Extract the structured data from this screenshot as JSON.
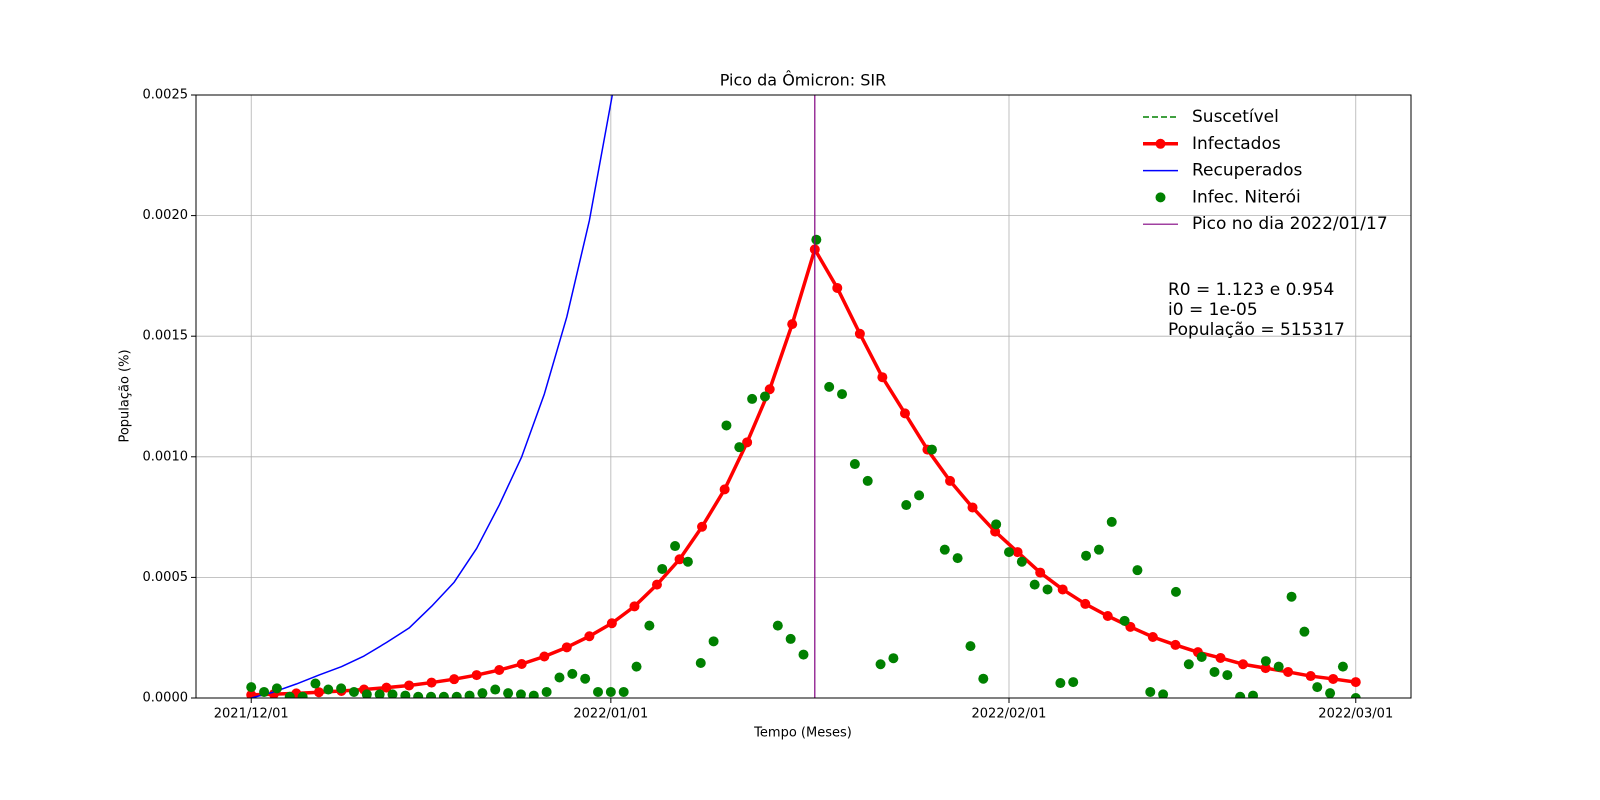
{
  "chart_data": {
    "type": "line",
    "title": "Pico da Ômicron: SIR",
    "x_label": "Tempo (Meses)",
    "y_label": "População (%)",
    "xlim": [
      -4.3,
      90.3
    ],
    "ylim": [
      0,
      0.0025
    ],
    "xticks": [
      {
        "value": 0,
        "label": "2021/12/01"
      },
      {
        "value": 28,
        "label": "2022/01/01"
      },
      {
        "value": 59,
        "label": "2022/02/01"
      },
      {
        "value": 86,
        "label": "2022/03/01"
      }
    ],
    "yticks": [
      {
        "value": 0,
        "label": "0.0000"
      },
      {
        "value": 0.0005,
        "label": "0.0005"
      },
      {
        "value": 0.001,
        "label": "0.0010"
      },
      {
        "value": 0.0015,
        "label": "0.0015"
      },
      {
        "value": 0.002,
        "label": "0.0020"
      },
      {
        "value": 0.0025,
        "label": "0.0025"
      }
    ],
    "grid": true,
    "legend": "upper right",
    "series": [
      {
        "name": "Suscetível",
        "color": "green",
        "style": "dashed",
        "x": [],
        "values": []
      },
      {
        "name": "Infectados",
        "color": "red",
        "style": "line-markers",
        "x": [
          0,
          1.76,
          3.51,
          5.27,
          7.02,
          8.78,
          10.53,
          12.29,
          14.04,
          15.8,
          17.55,
          19.31,
          21.06,
          22.82,
          24.57,
          26.33,
          28.08,
          29.84,
          31.59,
          33.35,
          35.1,
          36.86,
          38.61,
          40.37,
          42.12,
          43.88,
          45.63,
          47.39,
          49.14,
          50.9,
          52.65,
          54.41,
          56.16,
          57.92,
          59.67,
          61.43,
          63.18,
          64.94,
          66.69,
          68.45,
          70.2,
          71.96,
          73.71,
          75.47,
          77.22,
          78.98,
          80.73,
          82.49,
          84.24,
          86
        ],
        "values": [
          1.3e-05,
          1.6e-05,
          1.9e-05,
          2.4e-05,
          2.9e-05,
          3.5e-05,
          4.3e-05,
          5.2e-05,
          6.4e-05,
          7.8e-05,
          9.5e-05,
          0.000116,
          0.000141,
          0.000172,
          0.00021,
          0.000256,
          0.00031,
          0.00038,
          0.00047,
          0.000575,
          0.00071,
          0.000865,
          0.00106,
          0.00128,
          0.00155,
          0.00186,
          0.0017,
          0.00151,
          0.00133,
          0.00118,
          0.00103,
          0.0009,
          0.00079,
          0.00069,
          0.000605,
          0.00052,
          0.00045,
          0.00039,
          0.00034,
          0.000295,
          0.000253,
          0.00022,
          0.00019,
          0.000166,
          0.00014,
          0.000124,
          0.000108,
          9.1e-05,
          7.9e-05,
          6.6e-05
        ]
      },
      {
        "name": "Recuperados",
        "color": "blue",
        "style": "line",
        "x": [
          0,
          1.76,
          3.51,
          5.27,
          7.02,
          8.78,
          10.53,
          12.29,
          14.04,
          15.8,
          17.55,
          19.31,
          21.06,
          22.82,
          24.57,
          26.33,
          28.08,
          29.84
        ],
        "values": [
          0,
          2.5e-05,
          5.8e-05,
          9.5e-05,
          0.00013,
          0.000174,
          0.00023,
          0.00029,
          0.00038,
          0.00048,
          0.00062,
          0.0008,
          0.001,
          0.00126,
          0.00158,
          0.00198,
          0.00249,
          0.0031
        ]
      },
      {
        "name": "Infec. Niterói",
        "color": "green",
        "style": "markers",
        "x": [
          0,
          1,
          2,
          3,
          4,
          5,
          6,
          7,
          8,
          9,
          10,
          11,
          12,
          13,
          14,
          15,
          16,
          17,
          18,
          19,
          20,
          21,
          22,
          23,
          24,
          25,
          26,
          27,
          28,
          29,
          30,
          31,
          32,
          33,
          34,
          35,
          36,
          37,
          38,
          39,
          40,
          41,
          42,
          43,
          44,
          45,
          46,
          47,
          48,
          49,
          50,
          51,
          52,
          53,
          54,
          55,
          56,
          57,
          58,
          59,
          60,
          61,
          62,
          63,
          64,
          65,
          66,
          67,
          68,
          69,
          70,
          71,
          72,
          73,
          74,
          75,
          76,
          77,
          78,
          79,
          80,
          81,
          82,
          83,
          84,
          85,
          86
        ],
        "values": [
          4.5e-05,
          2.5e-05,
          4e-05,
          5e-06,
          5e-06,
          6e-05,
          3.5e-05,
          4e-05,
          2.5e-05,
          1.5e-05,
          1.5e-05,
          1.5e-05,
          1e-05,
          5e-06,
          5e-06,
          5e-06,
          5e-06,
          1e-05,
          2e-05,
          3.5e-05,
          2e-05,
          1.5e-05,
          1e-05,
          2.5e-05,
          8.5e-05,
          0.0001,
          8e-05,
          2.5e-05,
          2.5e-05,
          2.5e-05,
          0.00013,
          0.0003,
          0.000535,
          0.00063,
          0.000565,
          0.000145,
          0.000235,
          0.00113,
          0.00104,
          0.00124,
          0.00125,
          0.0003,
          0.000245,
          0.00018,
          0.0019,
          0.00129,
          0.00126,
          0.00097,
          0.0009,
          0.00014,
          0.000165,
          0.0008,
          0.00084,
          0.00103,
          0.000615,
          0.00058,
          0.000215,
          8e-05,
          0.00072,
          0.000605,
          0.000565,
          0.00047,
          0.00045,
          6.2e-05,
          6.6e-05,
          0.00059,
          0.000615,
          0.00073,
          0.00032,
          0.00053,
          2.5e-05,
          1.5e-05,
          0.00044,
          0.00014,
          0.00017,
          0.000108,
          9.5e-05,
          5e-06,
          1e-05,
          0.000153,
          0.00013,
          0.00042,
          0.000275,
          4.5e-05,
          2e-05,
          0.00013,
          0
        ]
      }
    ],
    "vline": {
      "name": "Pico no dia 2022/01/17",
      "color": "purple",
      "x": 43.88
    },
    "annotation": [
      "R0 = 1.123 e 0.954",
      "i0 = 1e-05",
      "População = 515317"
    ]
  }
}
